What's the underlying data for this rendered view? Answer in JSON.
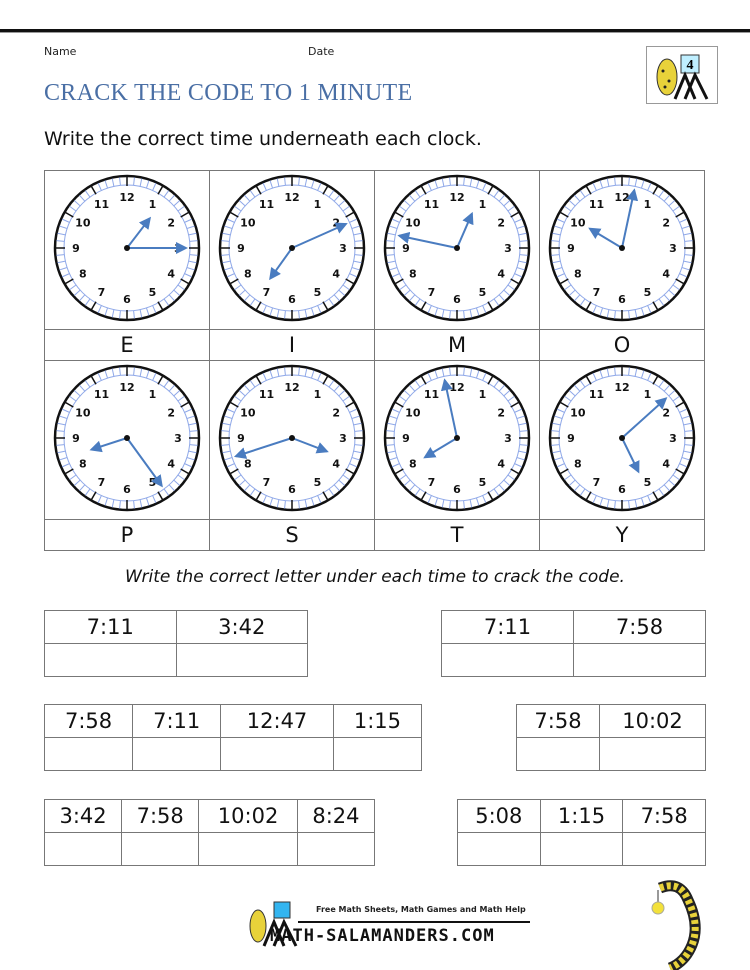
{
  "header": {
    "name_label": "Name",
    "date_label": "Date",
    "title": "CRACK THE CODE TO 1 MINUTE",
    "instruction": "Write the correct time underneath each clock.",
    "logo_badge": "4"
  },
  "clocks": [
    {
      "letter": "E",
      "time": "1:15"
    },
    {
      "letter": "I",
      "time": "7:11"
    },
    {
      "letter": "M",
      "time": "12:47"
    },
    {
      "letter": "O",
      "time": "10:02"
    },
    {
      "letter": "P",
      "time": "8:24"
    },
    {
      "letter": "S",
      "time": "3:42"
    },
    {
      "letter": "T",
      "time": "7:58"
    },
    {
      "letter": "Y",
      "time": "5:08"
    }
  ],
  "code_instruction": "Write the correct letter under each time to crack the code.",
  "code_tables": [
    {
      "times": [
        "7:11",
        "3:42"
      ]
    },
    {
      "times": [
        "7:11",
        "7:58"
      ]
    },
    {
      "times": [
        "7:58",
        "7:11",
        "12:47",
        "1:15"
      ]
    },
    {
      "times": [
        "7:58",
        "10:02"
      ]
    },
    {
      "times": [
        "3:42",
        "7:58",
        "10:02",
        "8:24"
      ]
    },
    {
      "times": [
        "5:08",
        "1:15",
        "7:58"
      ]
    }
  ],
  "footer": {
    "tagline": "Free Math Sheets, Math Games and Math Help",
    "site": "MATH-SALAMANDERS.COM"
  },
  "colors": {
    "title": "#4a6fa5",
    "hand": "#4a7cc0",
    "ring": "#8fa8e8"
  }
}
